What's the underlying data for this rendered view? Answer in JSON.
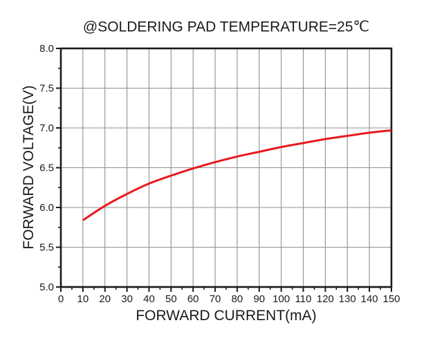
{
  "chart_data": {
    "type": "line",
    "title": "@SOLDERING PAD TEMPERATURE=25℃",
    "xlabel": "FORWARD CURRENT(mA)",
    "ylabel": "FORWARD VOLTAGE(V)",
    "xlim": [
      0,
      150
    ],
    "ylim": [
      5.0,
      8.0
    ],
    "grid": "major gridlines on, both axes",
    "legend": "none",
    "x_ticks": {
      "values": [
        0,
        10,
        20,
        30,
        40,
        50,
        60,
        70,
        80,
        90,
        100,
        110,
        120,
        130,
        140,
        150
      ],
      "labels": [
        "0",
        "10",
        "20",
        "30",
        "40",
        "50",
        "60",
        "70",
        "80",
        "90",
        "100",
        "110",
        "120",
        "130",
        "140",
        "150"
      ],
      "minor_step": 5
    },
    "y_ticks": {
      "values": [
        5.0,
        5.5,
        6.0,
        6.5,
        7.0,
        7.5,
        8.0
      ],
      "labels": [
        "5.0",
        "5.5",
        "6.0",
        "6.5",
        "7.0",
        "7.5",
        "8.0"
      ],
      "minor_step": 0.25
    },
    "series": [
      {
        "name": "forward-voltage-vs-current",
        "color": "#e8191f",
        "x": [
          10,
          20,
          30,
          40,
          50,
          60,
          70,
          80,
          90,
          100,
          110,
          120,
          130,
          140,
          150
        ],
        "y": [
          5.84,
          6.02,
          6.17,
          6.3,
          6.4,
          6.49,
          6.57,
          6.64,
          6.7,
          6.76,
          6.81,
          6.86,
          6.9,
          6.94,
          6.97
        ]
      }
    ],
    "colors": {
      "curve": "#e8191f",
      "grid": "#8f8f8f",
      "axis": "#1a1a1a",
      "background": "#ffffff"
    }
  }
}
